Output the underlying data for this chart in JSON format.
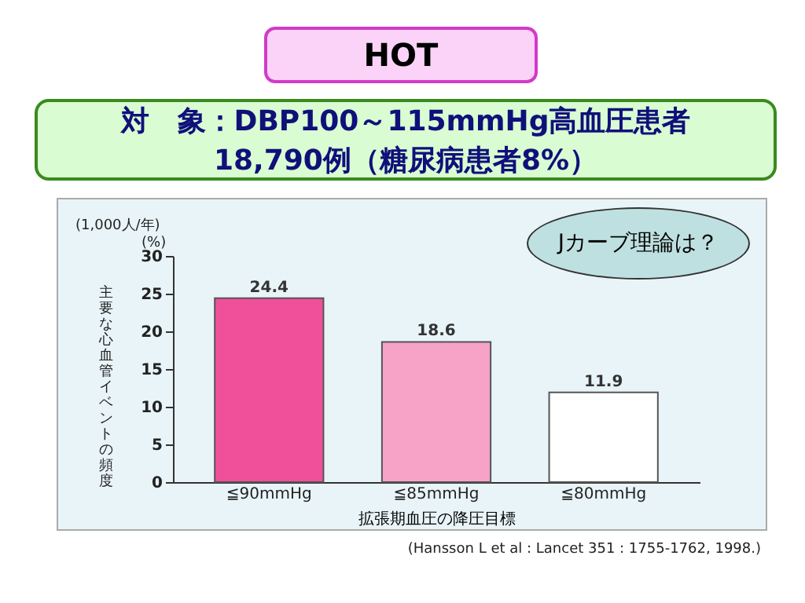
{
  "chart_data": {
    "type": "bar",
    "title": "HOT",
    "subtitle": "対　象：DBP100～115mmHg高血圧患者 18,790例（糖尿病患者8%）",
    "xlabel": "拡張期血圧の降圧目標",
    "ylabel": "主要な心血管イベントの頻度",
    "categories": [
      "≦90mmHg",
      "≦85mmHg",
      "≦80mmHg"
    ],
    "values": [
      24.4,
      18.6,
      11.9
    ],
    "colors": [
      "#f0509a",
      "#f7a3c8",
      "#ffffff"
    ],
    "ylim": [
      0,
      30
    ],
    "yticks": [
      0,
      5,
      10,
      15,
      20,
      25,
      30
    ],
    "data_labels": true,
    "annotations": [
      "(1,000人/年)",
      "(%)",
      "Jカーブ理論は？",
      "(Hansson L et al : Lancet 351 : 1755-1762, 1998.)"
    ]
  }
}
